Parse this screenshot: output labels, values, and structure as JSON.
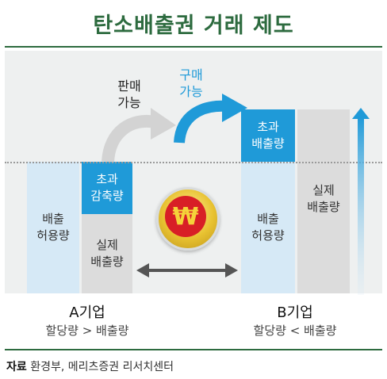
{
  "title": "탄소배출권 거래 제도",
  "company_a": {
    "name": "A기업",
    "comparison": "할당량 > 배출량",
    "allowance_label": "배출\n허용량",
    "reduction_label": "초과\n감축량",
    "actual_label": "실제\n배출량"
  },
  "company_b": {
    "name": "B기업",
    "comparison": "할당량 < 배출량",
    "allowance_label": "배출\n허용량",
    "excess_label": "초과\n배출량",
    "actual_label": "실제\n배출량"
  },
  "arrows": {
    "sell_label": "판매\n가능",
    "buy_label": "구매\n가능"
  },
  "coin": {
    "symbol": "₩",
    "icon": "won-coin-icon"
  },
  "source": {
    "prefix": "자료",
    "text": "환경부, 메리츠증권 리서치센터"
  },
  "colors": {
    "title": "#2d6b3f",
    "light_blue": "#d6e9f6",
    "blue": "#1f9ad8",
    "gray": "#dcdcdc",
    "buy_label": "#1f9ad8"
  }
}
